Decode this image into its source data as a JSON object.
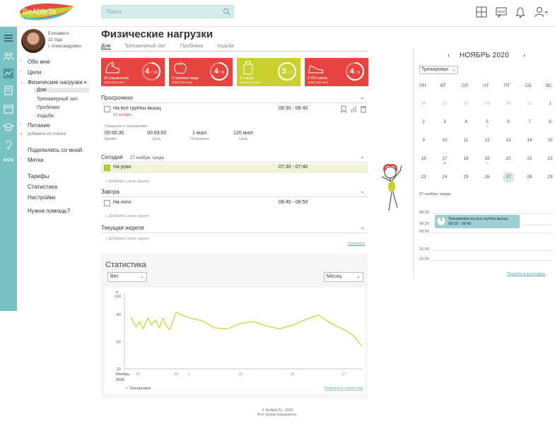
{
  "header": {
    "logo_text": "BeAbleTo",
    "search_placeholder": "Поиск"
  },
  "user": {
    "name": "Елизавета",
    "age": "22 года",
    "city": "г. Александровск"
  },
  "nav": {
    "about": "Обо мне",
    "goals": "Цели",
    "physical": "Физические нагрузки",
    "sub": [
      "Дом",
      "Тренажерный зал",
      "Пробежки",
      "Ходьба"
    ],
    "nutrition": "Питание",
    "add_list": "добавить из списка",
    "share": "Поделились со мной",
    "tags": "Метки",
    "tariffs": "Тарифы",
    "statistics": "Статистика",
    "settings": "Настройки",
    "help": "Нужна помощь?"
  },
  "page": {
    "title": "Физические нагрузки",
    "tabs": [
      "Дом",
      "Тренажерный зал",
      "Пробежки",
      "Ходьба"
    ]
  },
  "cards": [
    {
      "title": "10 упражнений",
      "sub": "2000,632 ккал",
      "value": "4",
      "total": "10",
      "fraction": 0.4,
      "color": "#e8443f"
    },
    {
      "title": "6 приемов пищи",
      "sub": "4000,646 ккал",
      "value": "4",
      "total": "6",
      "fraction": 0.67,
      "color": "#e8443f"
    },
    {
      "title": "3 л воды",
      "sub": "2000,632 ккал",
      "value": "3",
      "total": "3",
      "fraction": 1.0,
      "color": "#c9d12f"
    },
    {
      "title": "6 000 шагов",
      "sub": "4000,646 ккал",
      "value": "4",
      "total": "6",
      "fraction": 0.67,
      "color": "#e8443f"
    }
  ],
  "overdue": {
    "heading": "Просрочено",
    "task": "На все группы мышц",
    "time": "08:30 - 08:40",
    "date": "17 ноября",
    "info_heading": "Сведения о тренировке",
    "stats": [
      {
        "value": "00:00:30",
        "label": "Время"
      },
      {
        "value": "00:03:00",
        "label": "Цель"
      },
      {
        "value": "1 ккал",
        "label": "Потрачено"
      },
      {
        "value": "120 ккал",
        "label": "Цель"
      }
    ]
  },
  "today": {
    "heading": "Сегодня",
    "date": "27 ноября, среда",
    "task": "На руки",
    "time": "07:30 - 07:40",
    "add": "Добавить свою задачу"
  },
  "tomorrow": {
    "heading": "Завтра",
    "task": "На ноги",
    "time": "08:40 - 08:50",
    "add": "Добавить свою задачу"
  },
  "week": {
    "heading": "Текущая неделя",
    "add": "Добавить свою задачу",
    "collapse": "Свернуть"
  },
  "stats": {
    "title": "Статистика",
    "metric": "Вес",
    "period": "Месяц",
    "unit": "кг",
    "legend": "Тренировки",
    "link": "Перейти в статистике"
  },
  "chart_data": {
    "type": "line",
    "ylim": [
      20,
      100
    ],
    "yticks": [
      20,
      50,
      80,
      100
    ],
    "xticks": [
      {
        "label": "Ноябрь",
        "sub": "2020",
        "x": 0
      },
      {
        "label": "18",
        "x": 1
      },
      {
        "label": "29",
        "x": 4
      },
      {
        "label": "1",
        "x": 5
      },
      {
        "label": "10",
        "x": 9
      },
      {
        "label": "18",
        "x": 13
      },
      {
        "label": "27",
        "x": 17
      }
    ],
    "xlim": [
      0,
      18.5
    ],
    "series": [
      {
        "name": "Тренировки",
        "color": "#d4dc5a",
        "points": [
          [
            0.5,
            77
          ],
          [
            0.9,
            66
          ],
          [
            1.2,
            72
          ],
          [
            1.45,
            64
          ],
          [
            1.8,
            76
          ],
          [
            2.1,
            68
          ],
          [
            2.4,
            74
          ],
          [
            2.7,
            65
          ],
          [
            3.0,
            76
          ],
          [
            3.2,
            68
          ],
          [
            3.5,
            63
          ],
          [
            4.0,
            82
          ],
          [
            5.0,
            76
          ],
          [
            6.0,
            73
          ],
          [
            7.0,
            65
          ],
          [
            8.0,
            64
          ],
          [
            9.0,
            70
          ],
          [
            10.0,
            72
          ],
          [
            11.0,
            67
          ],
          [
            12.0,
            64
          ],
          [
            13.0,
            68
          ],
          [
            14.0,
            74
          ],
          [
            15.0,
            79
          ],
          [
            16.0,
            70
          ],
          [
            17.0,
            63
          ],
          [
            17.7,
            57
          ],
          [
            18.4,
            45
          ]
        ]
      }
    ]
  },
  "calendar": {
    "month": "НОЯБРЬ 2020",
    "filter": "Тренировки",
    "dow": [
      "ПН",
      "ВТ",
      "СР",
      "ЧТ",
      "ПТ",
      "СБ",
      "ВС"
    ],
    "weeks": [
      [
        "26",
        "27",
        "28",
        "29",
        "30",
        "31",
        "1"
      ],
      [
        "2",
        "3",
        "4",
        "5",
        "6",
        "7",
        "8"
      ],
      [
        "9",
        "10",
        "11",
        "12",
        "13",
        "14",
        "15"
      ],
      [
        "16",
        "17",
        "18",
        "19",
        "20",
        "21",
        "22"
      ],
      [
        "23",
        "24",
        "25",
        "26",
        "27",
        "28",
        "29"
      ]
    ],
    "day_heading": "27 ноября, среда",
    "times": [
      "08:00",
      "08:30",
      "09:00",
      "15:00",
      "15:30"
    ],
    "event_title": "Тренировка на все группы мышц",
    "event_time": "08:30 - 08:40",
    "event_badge": "1",
    "link": "Перейти в календарь"
  },
  "footer": {
    "line1": "© BeAbleTo, 2020",
    "line2": "Все права защищены."
  }
}
